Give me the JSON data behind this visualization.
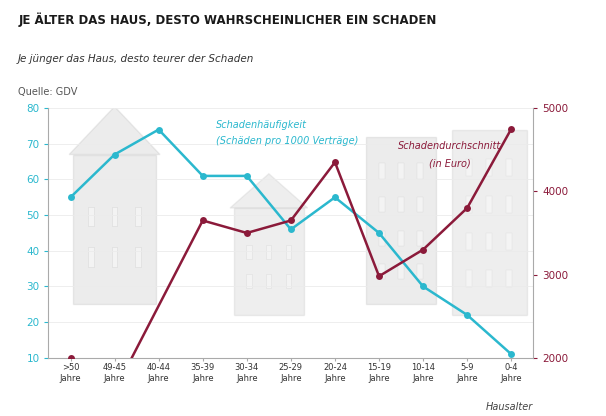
{
  "categories": [
    ">50\nJahre",
    "49-45\nJahre",
    "40-44\nJahre",
    "35-39\nJahre",
    "30-34\nJahre",
    "25-29\nJahre",
    "20-24\nJahre",
    "15-19\nJahre",
    "10-14\nJahre",
    "5-9\nJahre",
    "0-4\nJahre"
  ],
  "haeufigkeit_y": [
    55,
    67,
    74,
    61,
    61,
    46,
    55,
    45,
    30,
    22,
    11
  ],
  "euro_x": [
    0,
    1,
    3,
    4,
    5,
    6,
    7,
    8,
    9,
    10
  ],
  "euro_y": [
    2000,
    1600,
    3650,
    3500,
    3650,
    4350,
    2980,
    3300,
    3800,
    4750
  ],
  "title": "JE ÄLTER DAS HAUS, DESTO WAHRSCHEINLICHER EIN SCHADEN",
  "subtitle": "Je jünger das Haus, desto teurer der Schaden",
  "source": "Quelle: GDV",
  "label_haeufigkeit_1": "Schadenhäufigkeit",
  "label_haeufigkeit_2": "(Schäden pro 1000 Verträge)",
  "label_durchschnitt_1": "Schadendurchschnitt",
  "label_durchschnitt_2": "(in Euro)",
  "xlabel": "Hausalter",
  "color_haeufigkeit": "#2BB8CE",
  "color_durchschnitt": "#8B1A3A",
  "bg_color": "#FFFFFF",
  "ylim_left": [
    10,
    80
  ],
  "ylim_right": [
    2000,
    5000
  ],
  "yticks_left": [
    10,
    20,
    30,
    40,
    50,
    60,
    70,
    80
  ],
  "yticks_right": [
    2000,
    3000,
    4000,
    5000
  ],
  "bld_color": "#BBBBBB",
  "bld_alpha": 0.28
}
